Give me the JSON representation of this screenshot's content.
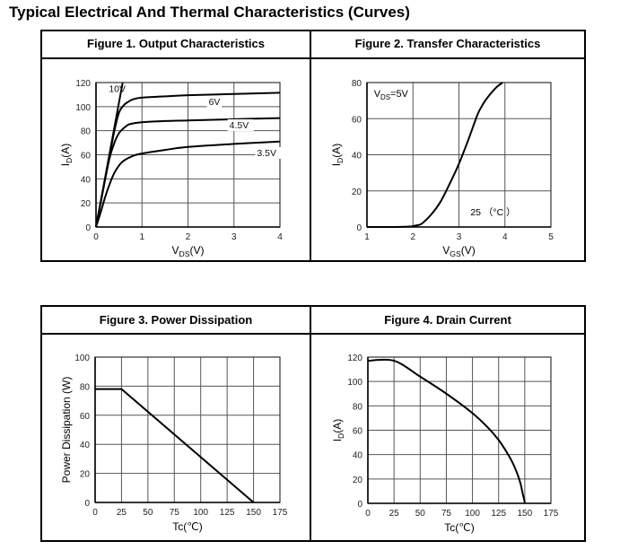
{
  "page": {
    "title": "Typical Electrical And Thermal Characteristics (Curves)"
  },
  "chart_data": [
    {
      "type": "line",
      "title": "Figure 1. Output Characteristics",
      "xlabel": "VDS(V)",
      "xlabel_main": "V",
      "xlabel_sub": "DS",
      "xlabel_tail": "(V)",
      "ylabel": "ID(A)",
      "ylabel_main": "I",
      "ylabel_sub": "D",
      "ylabel_tail": "(A)",
      "xlim": [
        0,
        4
      ],
      "ylim": [
        0,
        120
      ],
      "xticks": [
        0,
        1,
        2,
        3,
        4
      ],
      "yticks": [
        0,
        20,
        40,
        60,
        80,
        100,
        120
      ],
      "xgrid": [
        1,
        2,
        3
      ],
      "ygrid": [
        20,
        40,
        60,
        80,
        100
      ],
      "grid": true,
      "series": [
        {
          "name": "10V",
          "x": [
            0,
            0.3,
            0.58
          ],
          "y": [
            0,
            62,
            120
          ],
          "label_at": [
            0.28,
            112
          ]
        },
        {
          "name": "6V",
          "x": [
            0,
            0.2,
            0.3,
            0.4,
            0.5,
            0.6,
            0.7,
            0.8,
            1,
            1.5,
            2,
            3,
            4
          ],
          "y": [
            0,
            40,
            60,
            80,
            95,
            101,
            104,
            106,
            107.5,
            108.5,
            109.5,
            110.5,
            111.5
          ],
          "label_at": [
            2.45,
            101.5
          ]
        },
        {
          "name": "4.5V",
          "x": [
            0,
            0.2,
            0.3,
            0.4,
            0.5,
            0.6,
            0.7,
            0.8,
            1,
            1.5,
            2,
            3,
            4
          ],
          "y": [
            0,
            40,
            58,
            70,
            78,
            82,
            85,
            86,
            87,
            88,
            88.5,
            89.5,
            90.5
          ],
          "label_at": [
            2.9,
            82
          ]
        },
        {
          "name": "3.5V",
          "x": [
            0,
            0.1,
            0.2,
            0.3,
            0.4,
            0.5,
            0.6,
            0.8,
            1,
            1.5,
            2,
            3,
            4
          ],
          "y": [
            0,
            12,
            25,
            36,
            45,
            51,
            55,
            59,
            61,
            64,
            66.5,
            69,
            71
          ],
          "label_at": [
            3.5,
            59
          ]
        }
      ]
    },
    {
      "type": "line",
      "title": "Figure 2. Transfer Characteristics",
      "xlabel": "VGS(V)",
      "xlabel_main": "V",
      "xlabel_sub": "GS",
      "xlabel_tail": "(V)",
      "ylabel": "ID(A)",
      "ylabel_main": "I",
      "ylabel_sub": "D",
      "ylabel_tail": "(A)",
      "xlim": [
        1,
        5
      ],
      "ylim": [
        0,
        80
      ],
      "xticks": [
        1,
        2,
        3,
        4,
        5
      ],
      "yticks": [
        0,
        20,
        40,
        60,
        80
      ],
      "xgrid": [
        2,
        3,
        4
      ],
      "ygrid": [
        20,
        40,
        60
      ],
      "grid": true,
      "annotations": [
        {
          "text_main": "V",
          "text_sub": "DS",
          "text_tail": "=5V",
          "at": [
            1.15,
            72
          ]
        },
        {
          "text": "25 （°C ）",
          "at": [
            3.25,
            6.5
          ]
        }
      ],
      "series": [
        {
          "x": [
            1,
            1.5,
            1.9,
            2,
            2.1,
            2.2,
            2.4,
            2.6,
            2.8,
            3,
            3.2,
            3.4,
            3.5,
            3.6,
            3.8,
            3.95
          ],
          "y": [
            0,
            0,
            0.2,
            0.5,
            1,
            2,
            7,
            14,
            24,
            35,
            48,
            62,
            67,
            71,
            77,
            80
          ]
        }
      ]
    },
    {
      "type": "line",
      "title": "Figure 3. Power Dissipation",
      "xlabel": "Tc(℃)",
      "ylabel": "Power Dissipation (W)",
      "xlim": [
        0,
        175
      ],
      "ylim": [
        0,
        100
      ],
      "xticks": [
        0,
        25,
        50,
        75,
        100,
        125,
        150,
        175
      ],
      "yticks": [
        0,
        20,
        40,
        60,
        80,
        100
      ],
      "xgrid": [
        25,
        50,
        75,
        100,
        125,
        150
      ],
      "ygrid": [
        20,
        40,
        60,
        80
      ],
      "grid": true,
      "series": [
        {
          "x": [
            0,
            25,
            150
          ],
          "y": [
            78,
            78,
            0
          ]
        }
      ]
    },
    {
      "type": "line",
      "title": "Figure 4. Drain Current",
      "xlabel": "Tc(℃)",
      "ylabel": "ID(A)",
      "ylabel_main": "I",
      "ylabel_sub": "D",
      "ylabel_tail": "(A)",
      "xlim": [
        0,
        175
      ],
      "ylim": [
        0,
        120
      ],
      "xticks": [
        0,
        25,
        50,
        75,
        100,
        125,
        150,
        175
      ],
      "yticks": [
        0,
        20,
        40,
        60,
        80,
        100,
        120
      ],
      "xgrid": [
        25,
        50,
        75,
        100,
        125,
        150
      ],
      "ygrid": [
        20,
        40,
        60,
        80,
        100
      ],
      "grid": true,
      "series": [
        {
          "x": [
            0,
            25,
            50,
            75,
            100,
            115,
            125,
            132,
            138,
            143,
            146,
            148,
            149.5,
            150
          ],
          "y": [
            117,
            117,
            104,
            90,
            74,
            62,
            52,
            43,
            34,
            24,
            16,
            8,
            3,
            0
          ]
        }
      ]
    }
  ]
}
